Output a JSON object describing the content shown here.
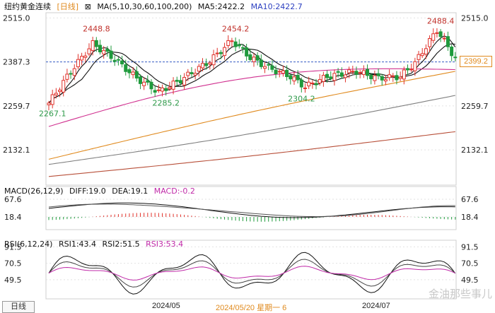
{
  "header": {
    "title": "纽约黄金连续",
    "period": "[日线]",
    "ma_params": "MA(5,10,30,60,100,200)",
    "ma5": "MA5:2422.2",
    "ma10": "MA10:2422.7"
  },
  "macd_header": {
    "params": "MACD(26,12,9)",
    "diff": "DIFF:19.0",
    "dea": "DEA:19.1",
    "macd": "MACD:-0.2"
  },
  "rsi_header": {
    "params": "RSI(6,12,24)",
    "rsi1": "RSI1:43.4",
    "rsi2": "RSI2:51.5",
    "rsi3": "RSI3:53.4"
  },
  "footer": {
    "period_label": "日线",
    "date_1": "2024/05",
    "date_hover": "2024/05/20 星期一 6",
    "date_2": "2024/07"
  },
  "watermark": "金油那些事儿",
  "colors": {
    "up": "#e0322b",
    "down": "#1f9a3c",
    "ma5": "#111111",
    "ma10": "#111111",
    "ma30": "#d0308f",
    "ma60": "#e08a1e",
    "ma100": "#808080",
    "ma200": "#b8503a",
    "last_price": "#e08a1e"
  },
  "chart_data": {
    "type": "candlestick",
    "instrument": "纽约黄金连续",
    "price_axis": {
      "ticks": [
        "2515.0",
        "2387.3",
        "2259.7",
        "2132.1"
      ],
      "ylim": [
        2030,
        2530
      ]
    },
    "last_price": "2399.2",
    "annotations": [
      {
        "label": "2448.8",
        "kind": "high",
        "index": 12
      },
      {
        "label": "2454.2",
        "kind": "high",
        "index": 50
      },
      {
        "label": "2488.4",
        "kind": "high",
        "index": 106
      },
      {
        "label": "2267.1",
        "kind": "low",
        "index": 0
      },
      {
        "label": "2285.2",
        "kind": "low",
        "index": 31
      },
      {
        "label": "2304.2",
        "kind": "low",
        "index": 68
      }
    ],
    "macd_axis": {
      "ticks": [
        "67.6",
        "18.4"
      ]
    },
    "rsi_axis": {
      "ticks": [
        "91.5",
        "70.5",
        "49.5"
      ]
    },
    "x_labels": [
      "2024/05",
      "2024/07"
    ]
  }
}
